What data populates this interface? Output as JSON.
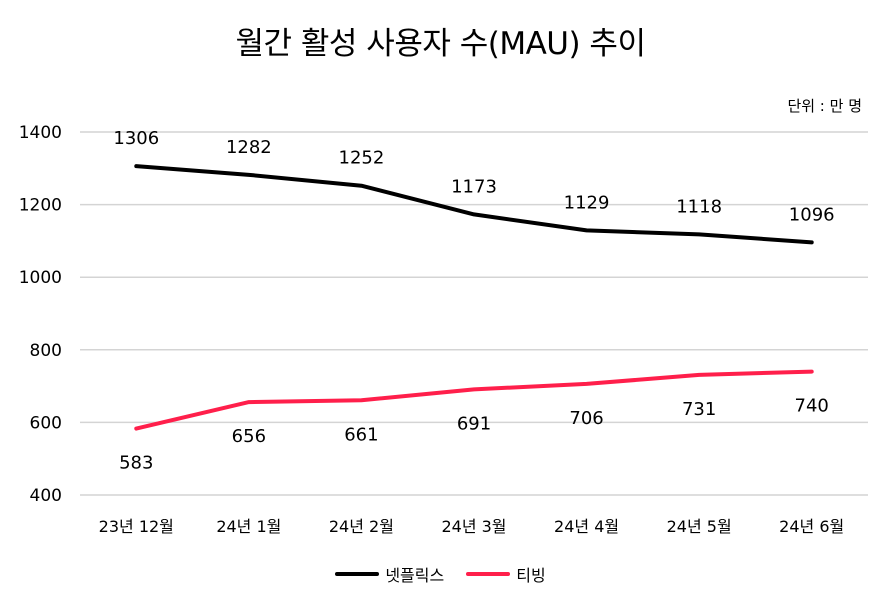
{
  "chart_data": {
    "type": "line",
    "title": "월간 활성 사용자 수(MAU) 추이",
    "unit_label": "단위 : 만 명",
    "categories": [
      "23년 12월",
      "24년 1월",
      "24년 2월",
      "24년 3월",
      "24년 4월",
      "24년 5월",
      "24년 6월"
    ],
    "ylim": [
      400,
      1400
    ],
    "yticks": [
      400,
      600,
      800,
      1000,
      1200,
      1400
    ],
    "grid": true,
    "legend_position": "bottom",
    "series": [
      {
        "name": "넷플릭스",
        "color": "#000000",
        "values": [
          1306,
          1282,
          1252,
          1173,
          1129,
          1118,
          1096
        ],
        "label_position": "above"
      },
      {
        "name": "티빙",
        "color": "#ff1f4b",
        "values": [
          583,
          656,
          661,
          691,
          706,
          731,
          740
        ],
        "label_position": "below"
      }
    ]
  }
}
